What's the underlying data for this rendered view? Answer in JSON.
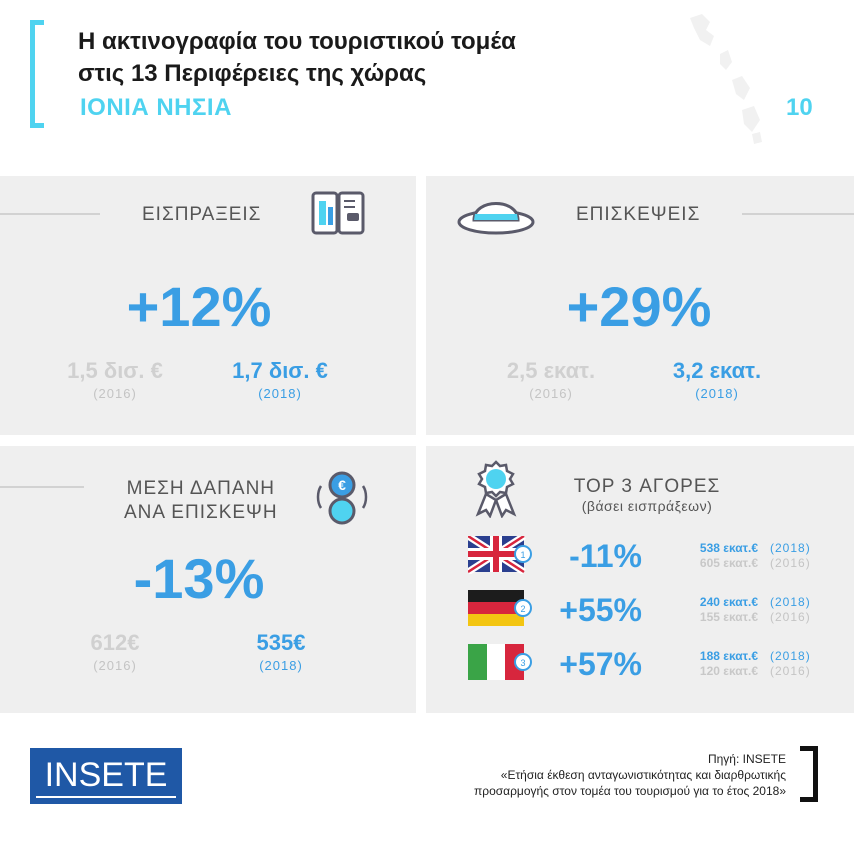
{
  "header": {
    "title_line1": "Η ακτινογραφία του τουριστικού τομέα",
    "title_line2": "στις 13 Περιφέρειες της χώρας",
    "region": "ΙΟΝΙΑ ΝΗΣΙΑ",
    "page_number": "10"
  },
  "receipts": {
    "label": "ΕΙΣΠΡΑΞΕΙΣ",
    "change": "+12%",
    "old_value": "1,5 δισ. €",
    "old_year": "(2016)",
    "new_value": "1,7 δισ. €",
    "new_year": "(2018)"
  },
  "visits": {
    "label": "ΕΠΙΣΚΕΨΕΙΣ",
    "change": "+29%",
    "old_value": "2,5 εκατ.",
    "old_year": "(2016)",
    "new_value": "3,2 εκατ.",
    "new_year": "(2018)"
  },
  "spend": {
    "label_line1": "ΜΕΣΗ ΔΑΠΑΝΗ",
    "label_line2": "ΑΝΑ ΕΠΙΣΚΕΨΗ",
    "change": "-13%",
    "old_value": "612€",
    "old_year": "(2016)",
    "new_value": "535€",
    "new_year": "(2018)"
  },
  "markets": {
    "title": "TOP 3 ΑΓΟΡΕΣ",
    "subtitle": "(βάσει εισπράξεων)",
    "items": [
      {
        "rank": "1",
        "flag": "uk-flag",
        "change": "-11%",
        "new_value": "538 εκατ.€",
        "new_year": "(2018)",
        "old_value": "605 εκατ.€",
        "old_year": "(2016)"
      },
      {
        "rank": "2",
        "flag": "germany-flag",
        "change": "+55%",
        "new_value": "240 εκατ.€",
        "new_year": "(2018)",
        "old_value": "155 εκατ.€",
        "old_year": "(2016)"
      },
      {
        "rank": "3",
        "flag": "italy-flag",
        "change": "+57%",
        "new_value": "188 εκατ.€",
        "new_year": "(2018)",
        "old_value": "120 εκατ.€",
        "old_year": "(2016)"
      }
    ]
  },
  "footer": {
    "logo": "INSETE",
    "source_line1": "Πηγή: INSETE",
    "source_line2": "«Ετήσια έκθεση ανταγωνιστικότητας και διαρθρωτικής",
    "source_line3": "προσαρμογής στον τομέα του τουρισμού για το έτος 2018»"
  },
  "colors": {
    "accent": "#4fd3f0",
    "blue": "#3a9ee4",
    "panel": "#efefef",
    "logo_bg": "#1f58a6"
  }
}
